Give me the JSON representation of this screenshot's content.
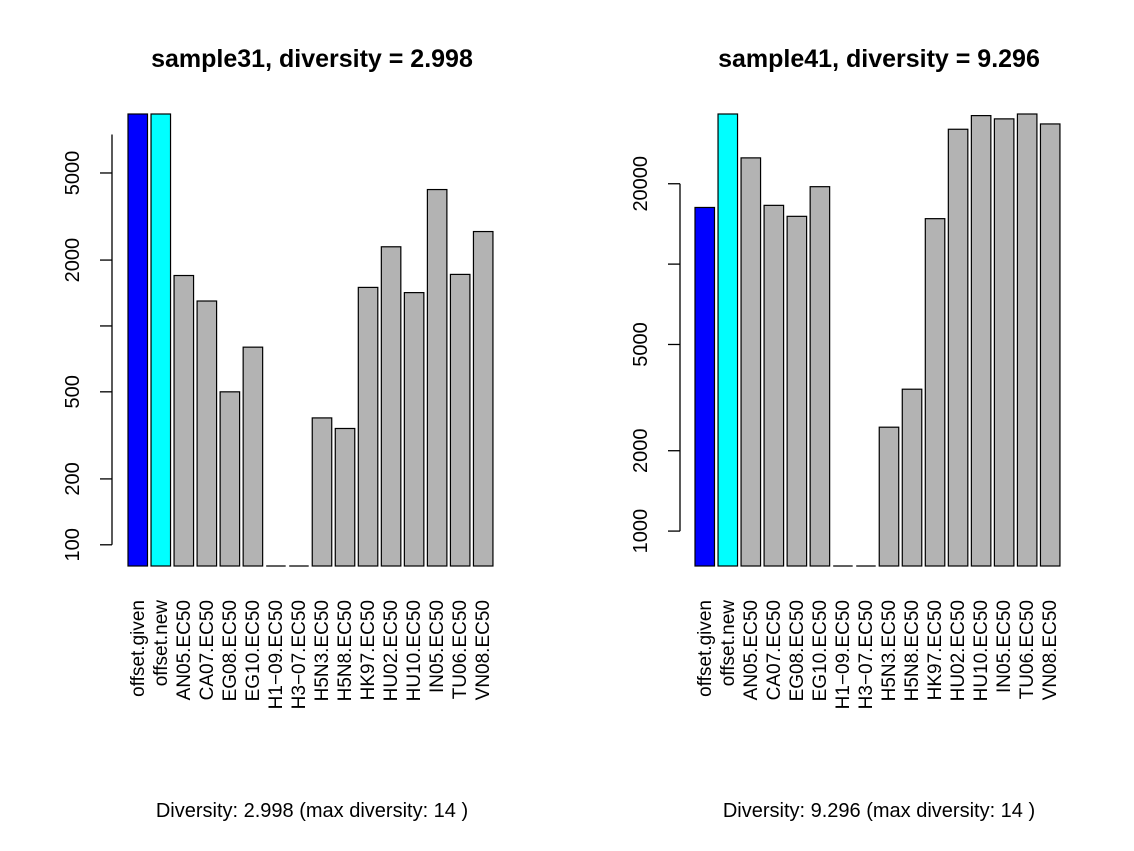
{
  "chart_data": [
    {
      "type": "bar",
      "title": "sample31, diversity = 2.998",
      "subtitle": "Diversity: 2.998 (max diversity: 14 )",
      "y_scale": "log",
      "ylim": [
        80,
        9300
      ],
      "y_ticks": [
        100,
        200,
        500,
        2000,
        5000
      ],
      "y_tick_labels": [
        "100",
        "200",
        "500",
        "2000",
        "5000"
      ],
      "y_axis_extent": [
        100,
        7500
      ],
      "categories": [
        "offset.given",
        "offset.new",
        "AN05.EC50",
        "CA07.EC50",
        "EG08.EC50",
        "EG10.EC50",
        "H1−09.EC50",
        "H3−07.EC50",
        "H5N3.EC50",
        "H5N8.EC50",
        "HK97.EC50",
        "HU02.EC50",
        "HU10.EC50",
        "IN05.EC50",
        "TU06.EC50",
        "VN08.EC50"
      ],
      "values": [
        9300,
        9300,
        1700,
        1300,
        500,
        800,
        null,
        null,
        380,
        340,
        1500,
        2300,
        1420,
        4200,
        1720,
        2700
      ],
      "colors": [
        "#0000ff",
        "#00ffff",
        "#b3b3b3",
        "#b3b3b3",
        "#b3b3b3",
        "#b3b3b3",
        "#b3b3b3",
        "#b3b3b3",
        "#b3b3b3",
        "#b3b3b3",
        "#b3b3b3",
        "#b3b3b3",
        "#b3b3b3",
        "#b3b3b3",
        "#b3b3b3",
        "#b3b3b3"
      ]
    },
    {
      "type": "bar",
      "title": "sample41, diversity = 9.296",
      "subtitle": "Diversity: 9.296 (max diversity: 14 )",
      "y_scale": "log",
      "ylim": [
        740,
        36500
      ],
      "y_ticks": [
        1000,
        2000,
        5000,
        20000
      ],
      "y_tick_labels": [
        "1000",
        "2000",
        "5000",
        "20000"
      ],
      "y_axis_extent": [
        1000,
        20000
      ],
      "categories": [
        "offset.given",
        "offset.new",
        "AN05.EC50",
        "CA07.EC50",
        "EG08.EC50",
        "EG10.EC50",
        "H1−09.EC50",
        "H3−07.EC50",
        "H5N3.EC50",
        "H5N8.EC50",
        "HK97.EC50",
        "HU02.EC50",
        "HU10.EC50",
        "IN05.EC50",
        "TU06.EC50",
        "VN08.EC50"
      ],
      "values": [
        16300,
        36500,
        25000,
        16600,
        15100,
        19500,
        null,
        null,
        2450,
        3400,
        14800,
        32000,
        36000,
        35000,
        36500,
        33500
      ],
      "colors": [
        "#0000ff",
        "#00ffff",
        "#b3b3b3",
        "#b3b3b3",
        "#b3b3b3",
        "#b3b3b3",
        "#b3b3b3",
        "#b3b3b3",
        "#b3b3b3",
        "#b3b3b3",
        "#b3b3b3",
        "#b3b3b3",
        "#b3b3b3",
        "#b3b3b3",
        "#b3b3b3",
        "#b3b3b3"
      ]
    }
  ]
}
